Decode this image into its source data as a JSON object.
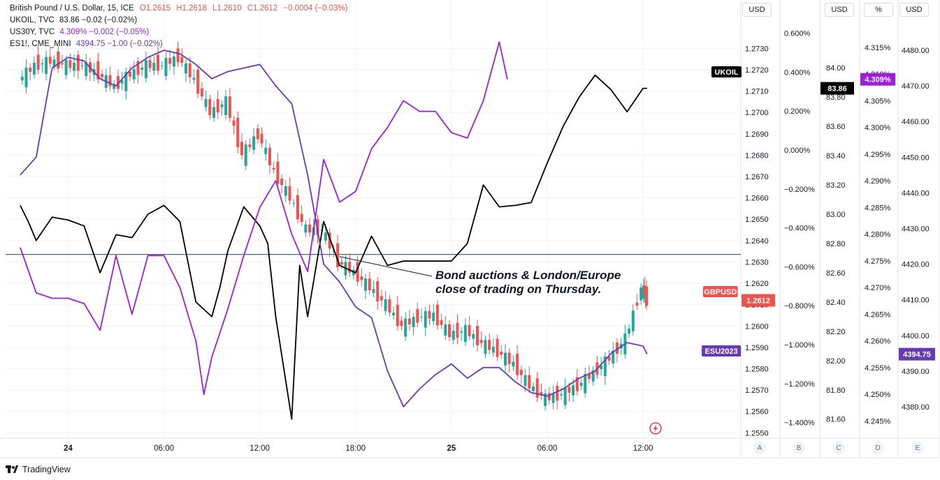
{
  "legend": {
    "main": {
      "name": "British Pound / U.S. Dollar, 15, ICE",
      "o": "O1.2615",
      "h": "H1.2618",
      "l": "L1.2610",
      "c": "C1.2612",
      "chg": "−0.0004 (−0.03%)"
    },
    "ukoil": {
      "name": "UKOIL, TVC",
      "vals": "83.86 −0.02 (−0.02%)"
    },
    "us30y": {
      "name": "US30Y, TVC",
      "vals": "4.309% −0.002 (−0.05%)"
    },
    "es": {
      "name": "ES1!, CME_MINI",
      "vals": "4394.75 −1.00 (−0.02%)"
    }
  },
  "unit_buttons": [
    "USD",
    "USD",
    "%",
    "USD"
  ],
  "axis_letters": [
    "A",
    "B",
    "C",
    "D",
    "E"
  ],
  "annotation": {
    "line1": "Bond auctions & London/Europe",
    "line2": "close of trading on Thursday."
  },
  "brand": "TradingView",
  "colors": {
    "gbpusd": "#ef5350",
    "gbpusd_up": "#26a69a",
    "ukoil": "#000000",
    "us30y": "#9c1fe0",
    "es": "#673ab7",
    "hline": "#1e3c5a",
    "grid": "#f0f3fa"
  },
  "chart_data": {
    "type": "line",
    "x_ticks": [
      "24",
      "06:00",
      "12:00",
      "18:00",
      "25",
      "06:00",
      "12:00"
    ],
    "axes": {
      "A": {
        "ticks": [
          "1.2730",
          "1.2720",
          "1.2710",
          "1.2700",
          "1.2690",
          "1.2680",
          "1.2670",
          "1.2660",
          "1.2650",
          "1.2640",
          "1.2630",
          "1.2620",
          "1.2610",
          "1.2600",
          "1.2590",
          "1.2580",
          "1.2570",
          "1.2560",
          "1.2550"
        ],
        "range": [
          1.25475,
          1.27435
        ]
      },
      "B": {
        "ticks": [
          "0.600%",
          "0.400%",
          "0.200%",
          "0.000%",
          "−0.200%",
          "−0.400%",
          "−0.600%",
          "−0.800%",
          "−1.000%",
          "−1.200%",
          "−1.400%"
        ],
        "range": [
          -1.48,
          0.67
        ]
      },
      "C": {
        "ticks": [
          "84.00",
          "83.80",
          "83.60",
          "83.40",
          "83.20",
          "83.00",
          "82.80",
          "82.60",
          "82.40",
          "82.20",
          "82.00",
          "81.80",
          "81.60"
        ],
        "range": [
          81.47,
          84.33
        ]
      },
      "D": {
        "ticks": [
          "4.315%",
          "4.310%",
          "4.305%",
          "4.300%",
          "4.295%",
          "4.290%",
          "4.285%",
          "4.280%",
          "4.275%",
          "4.270%",
          "4.265%",
          "4.260%",
          "4.255%",
          "4.250%",
          "4.245%"
        ],
        "range": [
          4.2418,
          4.3202
        ]
      },
      "E": {
        "ticks": [
          "4480.00",
          "4470.00",
          "4460.00",
          "4450.00",
          "4440.00",
          "4430.00",
          "4420.00",
          "4410.00",
          "4400.00",
          "4390.00",
          "4380.00"
        ],
        "range": [
          4371.2,
          4488.6
        ]
      }
    },
    "horizontal_line": 1.26335,
    "series": [
      {
        "name": "GBPUSD",
        "axis": "A",
        "kind": "candles",
        "last": "1.2612",
        "x": [
          "23T21:00",
          "23T22:00",
          "23T23:00",
          "24T00:00",
          "24T01:00",
          "24T02:00",
          "24T03:00",
          "24T04:00",
          "24T05:00",
          "24T06:00",
          "24T07:00",
          "24T08:00",
          "24T09:00",
          "24T10:00",
          "24T11:00",
          "24T12:00",
          "24T13:00",
          "24T14:00",
          "24T15:00",
          "24T16:00",
          "24T17:00",
          "24T18:00",
          "24T19:00",
          "24T20:00",
          "24T21:00",
          "24T22:00",
          "24T23:00",
          "25T00:00",
          "25T01:00",
          "25T02:00",
          "25T03:00",
          "25T04:00",
          "25T05:00",
          "25T06:00",
          "25T07:00",
          "25T08:00",
          "25T09:00",
          "25T10:00",
          "25T11:00",
          "25T12:00",
          "25T12:15"
        ],
        "values": [
          1.2715,
          1.2722,
          1.2724,
          1.2722,
          1.2722,
          1.2718,
          1.2712,
          1.2718,
          1.2722,
          1.2722,
          1.2726,
          1.2715,
          1.27,
          1.2705,
          1.268,
          1.269,
          1.2672,
          1.266,
          1.2645,
          1.2645,
          1.263,
          1.2625,
          1.2618,
          1.261,
          1.26,
          1.2604,
          1.2605,
          1.2596,
          1.2598,
          1.2592,
          1.2588,
          1.2582,
          1.2572,
          1.2566,
          1.2568,
          1.2572,
          1.2578,
          1.2585,
          1.2594,
          1.2618,
          1.2612
        ]
      },
      {
        "name": "UKOIL",
        "axis": "C",
        "kind": "line",
        "last": "83.86",
        "x": [
          "23T21:00",
          "23T21:30",
          "23T22:00",
          "23T23:00",
          "24T00:00",
          "24T01:00",
          "24T02:00",
          "24T03:00",
          "24T04:00",
          "24T05:00",
          "24T06:00",
          "24T07:00",
          "24T08:00",
          "24T09:00",
          "24T09:30",
          "24T10:00",
          "24T11:00",
          "24T12:00",
          "24T12:30",
          "24T13:00",
          "24T14:00",
          "24T14:30",
          "24T15:00",
          "24T16:00",
          "24T17:00",
          "24T18:00",
          "24T19:00",
          "24T20:00",
          "24T21:00",
          "24T22:00",
          "24T23:00",
          "25T00:00",
          "25T01:00",
          "25T02:00",
          "25T03:00",
          "25T04:00",
          "25T05:00",
          "25T06:00",
          "25T07:00",
          "25T08:00",
          "25T09:00",
          "25T10:00",
          "25T11:00",
          "25T12:00",
          "25T12:15"
        ],
        "values": [
          83.06,
          82.95,
          82.82,
          82.98,
          82.96,
          82.92,
          82.6,
          82.86,
          82.84,
          83.0,
          83.06,
          82.95,
          82.4,
          82.3,
          82.5,
          82.75,
          83.05,
          82.92,
          82.8,
          82.3,
          81.6,
          82.65,
          82.3,
          82.95,
          82.65,
          82.6,
          82.85,
          82.65,
          82.68,
          82.68,
          82.68,
          82.68,
          82.8,
          83.2,
          83.05,
          83.06,
          83.08,
          83.35,
          83.6,
          83.8,
          83.95,
          83.85,
          83.7,
          83.86,
          83.86
        ]
      },
      {
        "name": "US30Y",
        "axis": "D",
        "kind": "line",
        "last": "4.309%",
        "x": [
          "23T21:00",
          "23T22:00",
          "23T23:00",
          "24T00:00",
          "24T01:00",
          "24T02:00",
          "24T03:00",
          "24T04:00",
          "24T05:00",
          "24T06:00",
          "24T07:00",
          "24T08:00",
          "24T08:30",
          "24T09:00",
          "24T10:00",
          "24T11:00",
          "24T12:00",
          "24T13:00",
          "24T14:00",
          "24T15:00",
          "24T16:00",
          "24T17:00",
          "24T18:00",
          "24T19:00",
          "24T20:00",
          "24T21:00",
          "24T22:00",
          "24T23:00",
          "25T00:00",
          "25T01:00",
          "25T02:00",
          "25T03:00",
          "25T03:30"
        ],
        "values": [
          4.2775,
          4.269,
          4.268,
          4.268,
          4.267,
          4.262,
          4.276,
          4.265,
          4.276,
          4.276,
          4.27,
          4.26,
          4.25,
          4.257,
          4.266,
          4.276,
          4.285,
          4.29,
          4.28,
          4.273,
          4.294,
          4.286,
          4.288,
          4.296,
          4.3,
          4.305,
          4.303,
          4.303,
          4.299,
          4.298,
          4.305,
          4.316,
          4.309
        ]
      },
      {
        "name": "ESU2023",
        "axis": "E",
        "kind": "line",
        "last": "4394.75",
        "x": [
          "23T21:00",
          "23T22:00",
          "23T23:00",
          "24T00:00",
          "24T01:00",
          "24T02:00",
          "24T03:00",
          "24T04:00",
          "24T05:00",
          "24T06:00",
          "24T07:00",
          "24T08:00",
          "24T09:00",
          "24T10:00",
          "24T11:00",
          "24T12:00",
          "24T13:00",
          "24T14:00",
          "24T15:00",
          "24T16:00",
          "24T17:00",
          "24T18:00",
          "24T19:00",
          "24T20:00",
          "24T21:00",
          "24T22:00",
          "24T23:00",
          "25T00:00",
          "25T01:00",
          "25T02:00",
          "25T03:00",
          "25T04:00",
          "25T05:00",
          "25T06:00",
          "25T07:00",
          "25T08:00",
          "25T09:00",
          "25T10:00",
          "25T11:00",
          "25T12:00",
          "25T12:15"
        ],
        "values": [
          4445.0,
          4450.0,
          4475.0,
          4478.0,
          4477.0,
          4472.0,
          4470.0,
          4475.0,
          4478.0,
          4480.0,
          4479.0,
          4476.0,
          4472.0,
          4474.0,
          4475.0,
          4476.0,
          4470.0,
          4465.0,
          4445.0,
          4420.0,
          4415.0,
          4408.0,
          4405.0,
          4390.0,
          4380.0,
          4385.0,
          4389.0,
          4392.0,
          4388.0,
          4391.0,
          4391.0,
          4387.0,
          4384.0,
          4383.0,
          4385.0,
          4388.0,
          4390.0,
          4395.0,
          4398.0,
          4397.0,
          4394.75
        ]
      }
    ]
  }
}
